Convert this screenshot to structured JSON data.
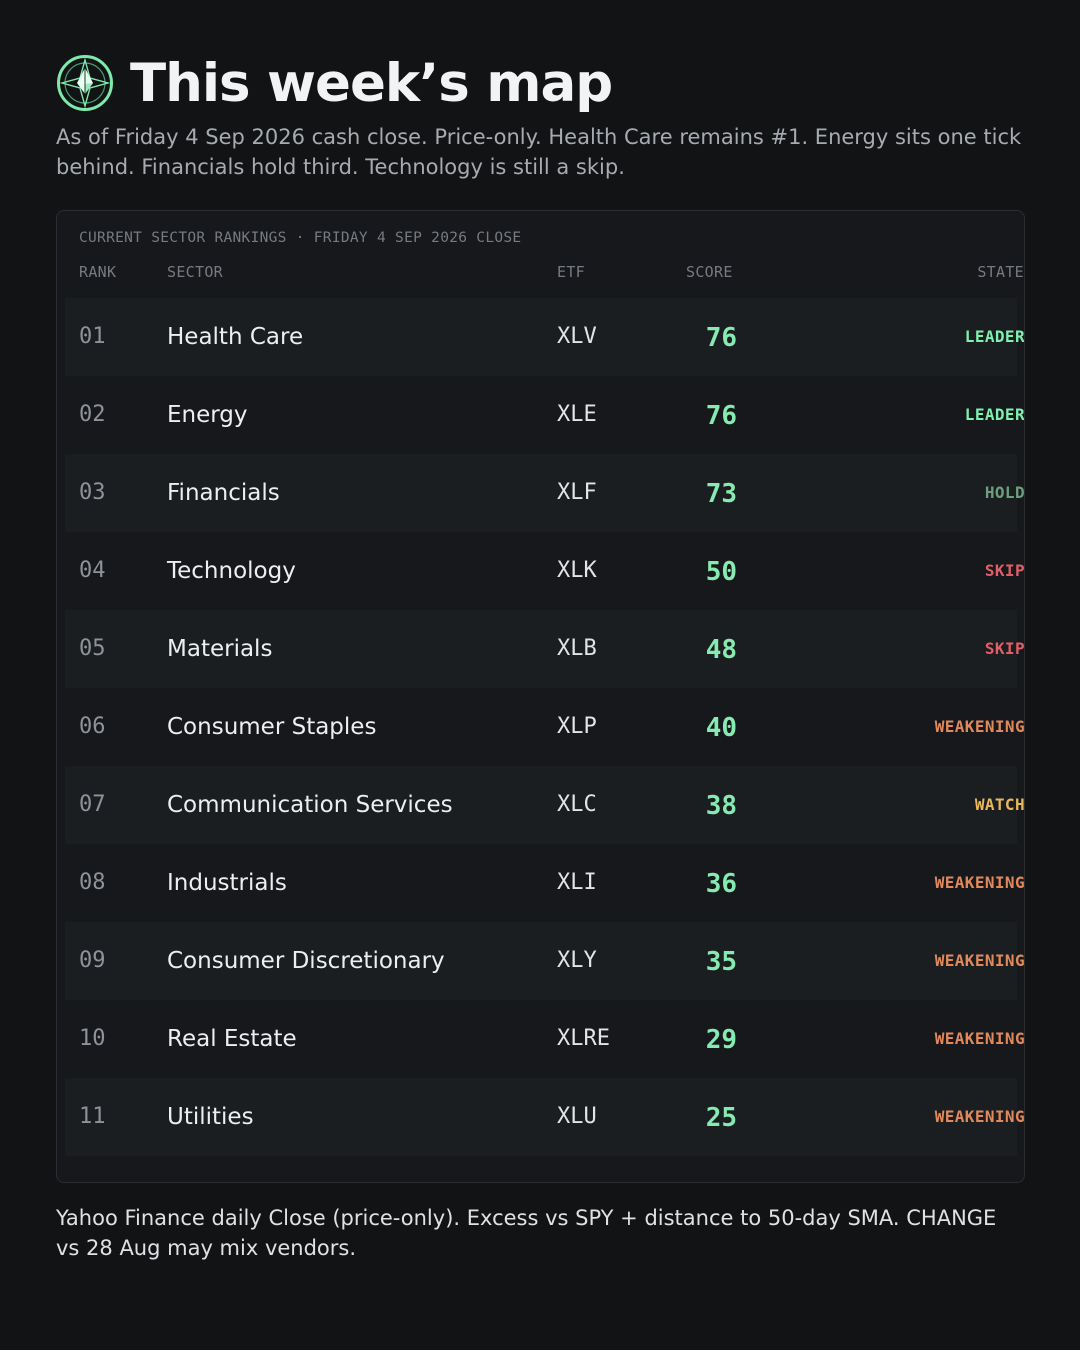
{
  "header": {
    "title": "This week’s map",
    "subtitle": "As of Friday 4 Sep 2026 cash close. Price-only. Health Care remains #1. Energy sits one tick behind. Financials hold third. Technology is still a skip."
  },
  "panel": {
    "caption": "CURRENT SECTOR RANKINGS · FRIDAY 4 SEP 2026 CLOSE",
    "columns": {
      "rank": "RANK",
      "sector": "SECTOR",
      "etf": "ETF",
      "score": "SCORE",
      "state": "STATE"
    }
  },
  "colors": {
    "accent": "#86ebb0",
    "leader": "#7ff0b0",
    "hold": "#6e9e7d",
    "skip": "#e0606a",
    "weakening": "#e08a5c",
    "watch": "#e8b85a"
  },
  "rows": [
    {
      "rank": "01",
      "sector": "Health Care",
      "etf": "XLV",
      "score": "76",
      "state": "LEADER",
      "state_color": "#7ff0b0"
    },
    {
      "rank": "02",
      "sector": "Energy",
      "etf": "XLE",
      "score": "76",
      "state": "LEADER",
      "state_color": "#7ff0b0"
    },
    {
      "rank": "03",
      "sector": "Financials",
      "etf": "XLF",
      "score": "73",
      "state": "HOLD",
      "state_color": "#6e9e7d"
    },
    {
      "rank": "04",
      "sector": "Technology",
      "etf": "XLK",
      "score": "50",
      "state": "SKIP",
      "state_color": "#e0606a"
    },
    {
      "rank": "05",
      "sector": "Materials",
      "etf": "XLB",
      "score": "48",
      "state": "SKIP",
      "state_color": "#e0606a"
    },
    {
      "rank": "06",
      "sector": "Consumer Staples",
      "etf": "XLP",
      "score": "40",
      "state": "WEAKENING",
      "state_color": "#e08a5c"
    },
    {
      "rank": "07",
      "sector": "Communication Services",
      "etf": "XLC",
      "score": "38",
      "state": "WATCH",
      "state_color": "#e8b85a"
    },
    {
      "rank": "08",
      "sector": "Industrials",
      "etf": "XLI",
      "score": "36",
      "state": "WEAKENING",
      "state_color": "#e08a5c"
    },
    {
      "rank": "09",
      "sector": "Consumer Discretionary",
      "etf": "XLY",
      "score": "35",
      "state": "WEAKENING",
      "state_color": "#e08a5c"
    },
    {
      "rank": "10",
      "sector": "Real Estate",
      "etf": "XLRE",
      "score": "29",
      "state": "WEAKENING",
      "state_color": "#e08a5c"
    },
    {
      "rank": "11",
      "sector": "Utilities",
      "etf": "XLU",
      "score": "25",
      "state": "WEAKENING",
      "state_color": "#e08a5c"
    }
  ],
  "footer": {
    "note": "Yahoo Finance daily Close (price-only). Excess vs SPY + distance to 50-day SMA. CHANGE vs 28 Aug may mix vendors."
  },
  "icons": {
    "logo": "compass-target-icon"
  }
}
